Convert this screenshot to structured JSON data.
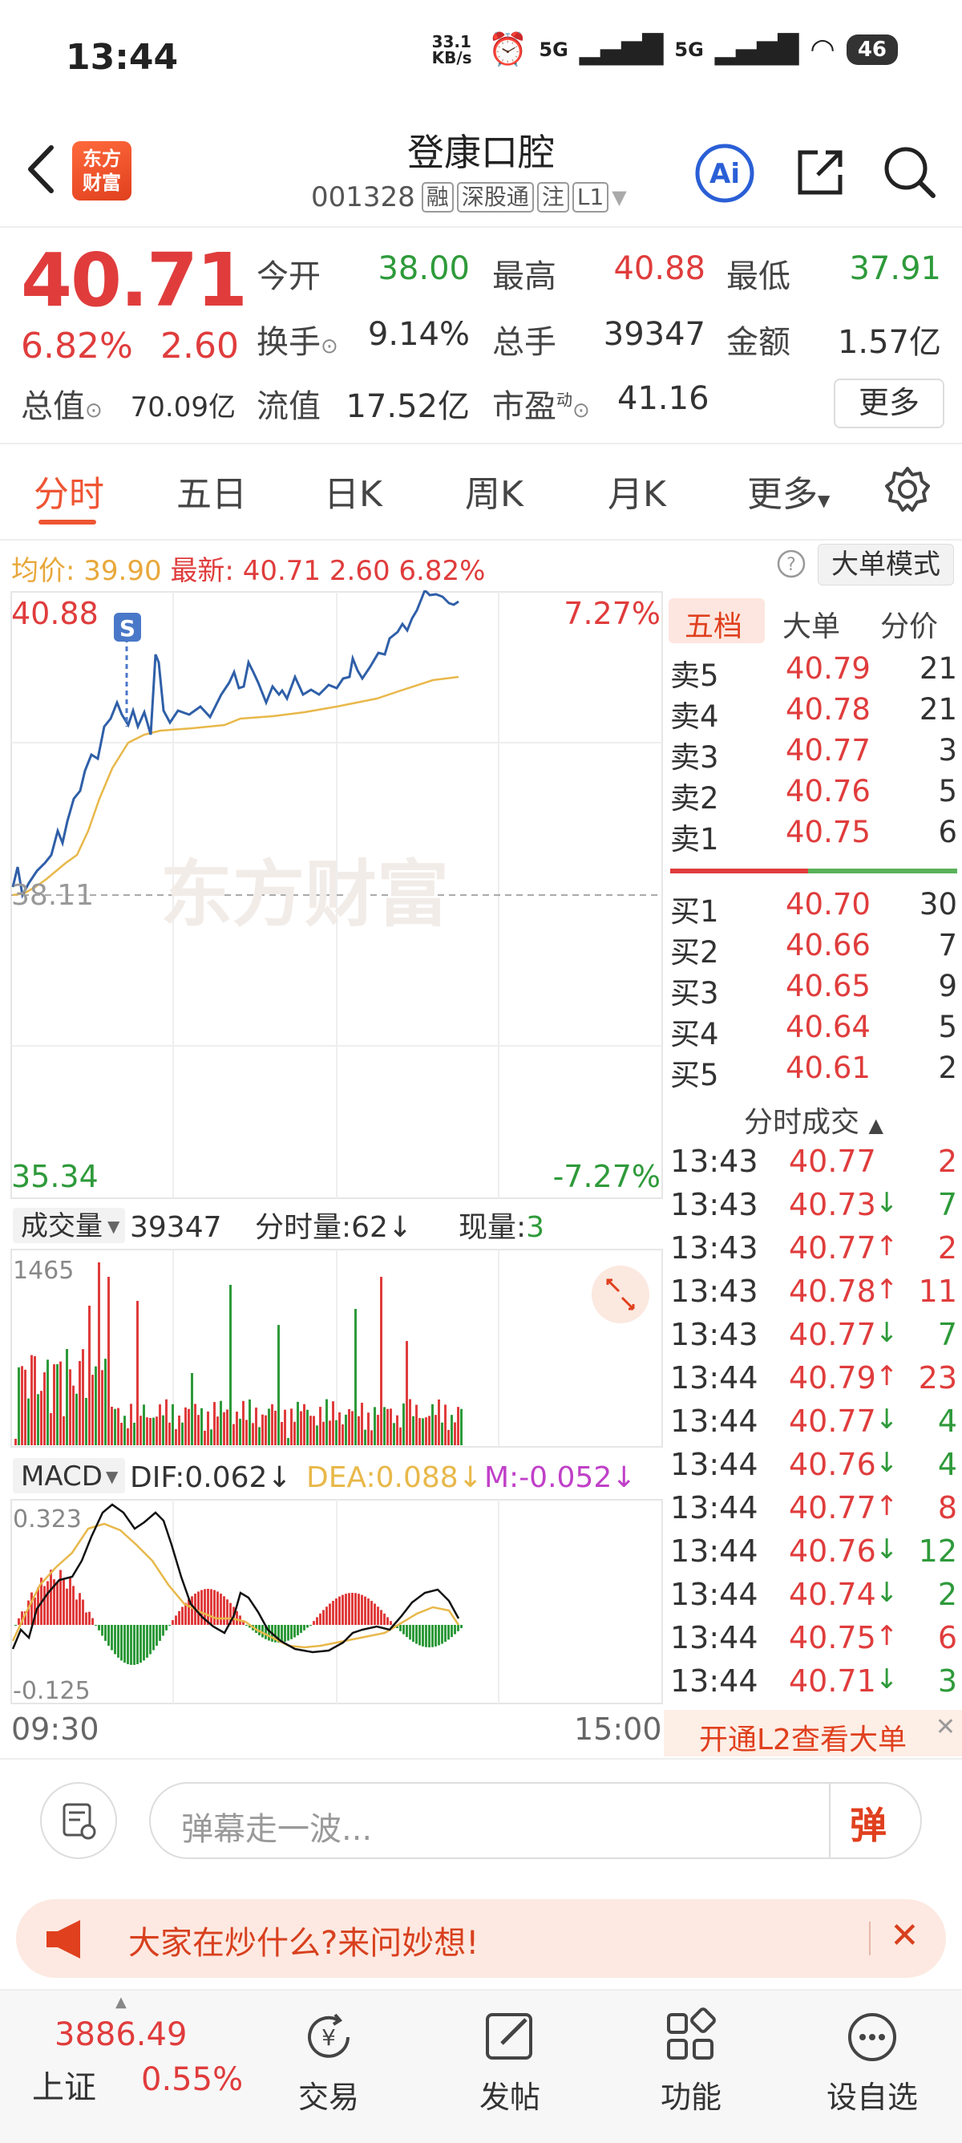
{
  "status_bar": {
    "time": "13:44",
    "speed": "33.1 KB/s",
    "net1": "5G",
    "net2": "5G",
    "battery": "46"
  },
  "header": {
    "logo": "东方财富",
    "title": "登康口腔",
    "code": "001328",
    "tags": [
      "融",
      "深股通",
      "注",
      "L1"
    ]
  },
  "quote": {
    "last": "40.71",
    "change_pct": "6.82%",
    "change_amt": "2.60",
    "open_label": "今开",
    "open": "38.00",
    "high_label": "最高",
    "high": "40.88",
    "low_label": "最低",
    "low": "37.91",
    "turnover_label": "换手",
    "turnover": "9.14%",
    "volume_label": "总手",
    "volume": "39347",
    "amount_label": "金额",
    "amount": "1.57亿",
    "mktcap_label": "总值",
    "mktcap": "70.09亿",
    "float_label": "流值",
    "float_cap": "17.52亿",
    "pe_label": "市盈",
    "pe_sup": "动",
    "pe": "41.16",
    "more": "更多"
  },
  "tabs": [
    "分时",
    "五日",
    "日K",
    "周K",
    "月K",
    "更多"
  ],
  "avg_info": {
    "avg_label": "均价:",
    "avg": "39.90",
    "latest_label": "最新:",
    "latest": "40.71",
    "chg": "2.60",
    "pct": "6.82%"
  },
  "big_order_mode": "大单模式",
  "chart": {
    "y_high": "40.88",
    "y_prev": "38.11",
    "y_low": "35.34",
    "pct_high": "7.27%",
    "pct_low": "-7.27%",
    "watermark": "东方财富",
    "marker": "S",
    "vol_label": "成交量",
    "vol_total": "39347",
    "vol_minute_label": "分时量:",
    "vol_minute": "62",
    "vol_now_label": "现量:",
    "vol_now": "3",
    "vol_max": "1465",
    "macd_label": "MACD",
    "dif": "DIF:0.062",
    "dea": "DEA:0.088",
    "m": "M:-0.052",
    "macd_max": "0.323",
    "macd_min": "-0.125",
    "time_start": "09:30",
    "time_end": "15:00"
  },
  "orderbook": {
    "tabs": [
      "五档",
      "大单",
      "分价"
    ],
    "asks": [
      {
        "label": "卖5",
        "price": "40.79",
        "vol": "21"
      },
      {
        "label": "卖4",
        "price": "40.78",
        "vol": "21"
      },
      {
        "label": "卖3",
        "price": "40.77",
        "vol": "3"
      },
      {
        "label": "卖2",
        "price": "40.76",
        "vol": "5"
      },
      {
        "label": "卖1",
        "price": "40.75",
        "vol": "6"
      }
    ],
    "bids": [
      {
        "label": "买1",
        "price": "40.70",
        "vol": "30"
      },
      {
        "label": "买2",
        "price": "40.66",
        "vol": "7"
      },
      {
        "label": "买3",
        "price": "40.65",
        "vol": "9"
      },
      {
        "label": "买4",
        "price": "40.64",
        "vol": "5"
      },
      {
        "label": "买5",
        "price": "40.61",
        "vol": "2"
      }
    ]
  },
  "ticks": {
    "title": "分时成交",
    "rows": [
      {
        "time": "13:43",
        "price": "40.77",
        "dir": "",
        "vol": "2",
        "color": "red"
      },
      {
        "time": "13:43",
        "price": "40.73",
        "dir": "↓",
        "vol": "7",
        "color": "green"
      },
      {
        "time": "13:43",
        "price": "40.77",
        "dir": "↑",
        "vol": "2",
        "color": "red"
      },
      {
        "time": "13:43",
        "price": "40.78",
        "dir": "↑",
        "vol": "11",
        "color": "red"
      },
      {
        "time": "13:43",
        "price": "40.77",
        "dir": "↓",
        "vol": "7",
        "color": "green"
      },
      {
        "time": "13:44",
        "price": "40.79",
        "dir": "↑",
        "vol": "23",
        "color": "red"
      },
      {
        "time": "13:44",
        "price": "40.77",
        "dir": "↓",
        "vol": "4",
        "color": "green"
      },
      {
        "time": "13:44",
        "price": "40.76",
        "dir": "↓",
        "vol": "4",
        "color": "green"
      },
      {
        "time": "13:44",
        "price": "40.77",
        "dir": "↑",
        "vol": "8",
        "color": "red"
      },
      {
        "time": "13:44",
        "price": "40.76",
        "dir": "↓",
        "vol": "12",
        "color": "green"
      },
      {
        "time": "13:44",
        "price": "40.74",
        "dir": "↓",
        "vol": "2",
        "color": "green"
      },
      {
        "time": "13:44",
        "price": "40.75",
        "dir": "↑",
        "vol": "6",
        "color": "red"
      },
      {
        "time": "13:44",
        "price": "40.71",
        "dir": "↓",
        "vol": "3",
        "color": "green"
      }
    ]
  },
  "l2_banner": "开通L2查看大单",
  "comment": {
    "placeholder": "弹幕走一波...",
    "danmu": "弹"
  },
  "promo": "大家在炒什么?来问妙想!",
  "bottom_nav": {
    "index_price": "3886.49",
    "index_name": "上证",
    "index_pct": "0.55%",
    "items": [
      "交易",
      "发帖",
      "功能",
      "设自选"
    ]
  },
  "colors": {
    "up": "#e03c3c",
    "down": "#2e9a3a",
    "price_line": "#2f5fa8",
    "avg_line": "#e8b84a",
    "accent": "#ee5533"
  }
}
